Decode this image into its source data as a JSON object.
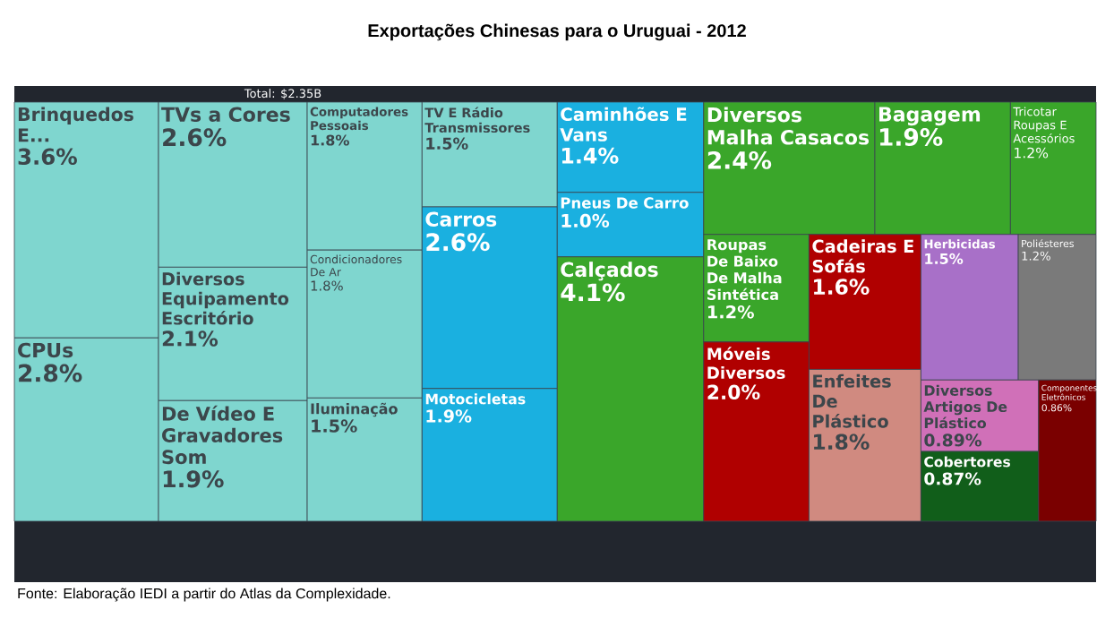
{
  "chart_data": {
    "type": "other",
    "title": "Exportações Chinesas para o Uruguai - 2012",
    "categories": [
      "Brinquedos E...",
      "CPUs",
      "TVs a Cores",
      "Diversos Equipamento Escritório",
      "De Vídeo E Gravadores Som",
      "Computadores Pessoais",
      "Condicionadores De Ar",
      "Iluminação",
      "TV E Rádio Transmissores",
      "Carros",
      "Motocicletas",
      "Caminhões E Vans",
      "Pneus De Carro",
      "Calçados",
      "Diversos Malha Casacos",
      "Bagagem",
      "Tricotar Roupas E Acessórios",
      "Roupas De Baixo De Malha Sintética",
      "Móveis Diversos",
      "Cadeiras E Sofás",
      "Enfeites De Plástico",
      "Herbicidas",
      "Poliésteres",
      "Diversos Artigos De Plástico",
      "Cobertores",
      "Componentes Eletrônicos"
    ],
    "values": [
      3.6,
      2.8,
      2.6,
      2.1,
      1.9,
      1.8,
      1.8,
      1.5,
      1.5,
      2.6,
      1.9,
      1.4,
      1.0,
      4.1,
      2.4,
      1.9,
      1.2,
      1.2,
      2.0,
      1.6,
      1.8,
      1.5,
      1.2,
      0.89,
      0.87,
      0.86
    ],
    "value_labels": [
      "3.6%",
      "2.8%",
      "2.6%",
      "2.1%",
      "1.9%",
      "1.8%",
      "1.8%",
      "1.5%",
      "1.5%",
      "2.6%",
      "1.9%",
      "1.4%",
      "1.0%",
      "4.1%",
      "2.4%",
      "1.9%",
      "1.2%",
      "1.2%",
      "2.0%",
      "1.6%",
      "1.8%",
      "1.5%",
      "1.2%",
      "0.89%",
      "0.87%",
      "0.86%"
    ],
    "colors": [
      "#7fd6cf",
      "#7fd6cf",
      "#7fd6cf",
      "#7fd6cf",
      "#7fd6cf",
      "#7fd6cf",
      "#7fd6cf",
      "#7fd6cf",
      "#7fd6cf",
      "#1ab0e0",
      "#1ab0e0",
      "#1ab0e0",
      "#1ab0e0",
      "#3aa62a",
      "#3aa62a",
      "#3aa62a",
      "#3aa62a",
      "#3aa62a",
      "#b00000",
      "#b00000",
      "#d08a80",
      "#a870c8",
      "#7a7a7a",
      "#d070b8",
      "#115e1a",
      "#7a0000"
    ],
    "annotations": [
      "Total: $2.35B",
      "Fonte: Elaboração IEDI a partir do Atlas da Complexidade."
    ]
  }
}
